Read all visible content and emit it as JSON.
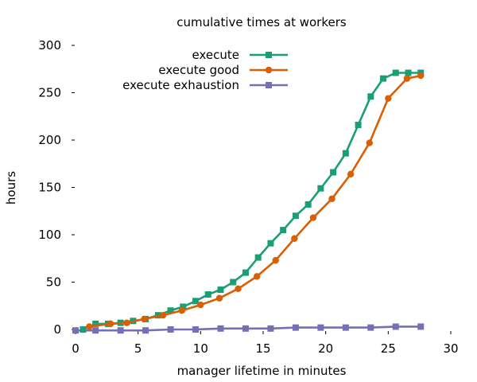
{
  "chart_data": {
    "type": "line",
    "title": "cumulative times at workers",
    "xlabel": "manager lifetime in minutes",
    "ylabel": "hours",
    "xlim": [
      0,
      30
    ],
    "ylim": [
      0,
      300
    ],
    "xticks": [
      0,
      5,
      10,
      15,
      20,
      25,
      30
    ],
    "yticks": [
      0,
      50,
      100,
      150,
      200,
      250,
      300
    ],
    "grid": false,
    "legend_position": "top-center",
    "series": [
      {
        "name": "execute",
        "color": "#1a9e77",
        "marker": "square",
        "x": [
          0.6,
          1.6,
          2.6,
          3.6,
          4.6,
          5.6,
          6.6,
          7.6,
          8.6,
          9.6,
          10.6,
          11.6,
          12.6,
          13.6,
          14.6,
          15.6,
          16.6,
          17.6,
          18.6,
          19.6,
          20.6,
          21.6,
          22.6,
          23.6,
          24.6,
          25.6,
          26.6,
          27.6
        ],
        "y": [
          0,
          6,
          6,
          7,
          9,
          11,
          15,
          20,
          24,
          30,
          37,
          42,
          50,
          60,
          76,
          91,
          105,
          120,
          132,
          149,
          166,
          186,
          216,
          246,
          265,
          271,
          271,
          271
        ]
      },
      {
        "name": "execute good",
        "color": "#d95f02",
        "marker": "circle",
        "x": [
          1.1,
          2.8,
          4.1,
          5.5,
          7.0,
          8.5,
          10.0,
          11.5,
          13.0,
          14.5,
          16.0,
          17.5,
          19.0,
          20.5,
          22.0,
          23.5,
          25.0,
          26.5,
          27.6
        ],
        "y": [
          3,
          6,
          7,
          11,
          15,
          20,
          26,
          33,
          43,
          56,
          73,
          96,
          118,
          138,
          164,
          197,
          244,
          265,
          268
        ]
      },
      {
        "name": "execute exhaustion",
        "color": "#7570b3",
        "marker": "square",
        "x": [
          0,
          1.6,
          3.6,
          5.6,
          7.6,
          9.6,
          11.6,
          13.6,
          15.6,
          17.6,
          19.6,
          21.6,
          23.6,
          25.6,
          27.6
        ],
        "y": [
          -1,
          -1,
          -1,
          -1,
          0,
          0,
          1,
          1,
          1,
          2,
          2,
          2,
          2,
          3,
          3
        ]
      }
    ]
  }
}
